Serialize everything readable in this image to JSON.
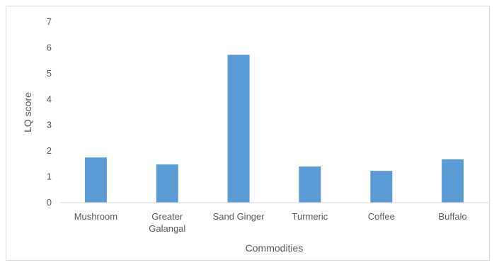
{
  "chart_data": {
    "type": "bar",
    "title": "",
    "xlabel": "Commodities",
    "ylabel": "LQ score",
    "categories": [
      [
        "Mushroom"
      ],
      [
        "Greater",
        "Galangal"
      ],
      [
        "Sand Ginger"
      ],
      [
        "Turmeric"
      ],
      [
        "Coffee"
      ],
      [
        "Buffalo"
      ]
    ],
    "values": [
      1.75,
      1.48,
      5.73,
      1.4,
      1.23,
      1.68
    ],
    "ylim": [
      0,
      7
    ],
    "yticks": [
      0,
      1,
      2,
      3,
      4,
      5,
      6,
      7
    ],
    "grid": false,
    "legend": "none",
    "colors": {
      "bar": "#5b9bd5",
      "axis": "#d9d9d9",
      "text": "#595959"
    }
  }
}
